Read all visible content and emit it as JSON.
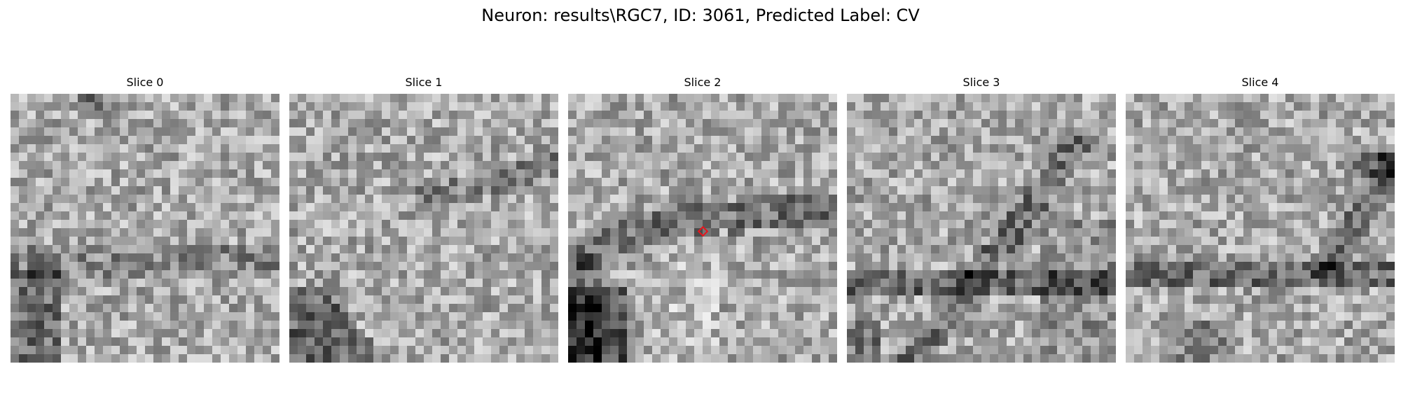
{
  "figure": {
    "title": "Neuron: results\\RGC7, ID: 3061, Predicted Label: CV",
    "marker_color": "#e8141c",
    "colormap": "grayscale"
  },
  "slices": [
    {
      "label": "Slice 0"
    },
    {
      "label": "Slice 1"
    },
    {
      "label": "Slice 2",
      "has_marker": true
    },
    {
      "label": "Slice 3"
    },
    {
      "label": "Slice 4"
    }
  ]
}
